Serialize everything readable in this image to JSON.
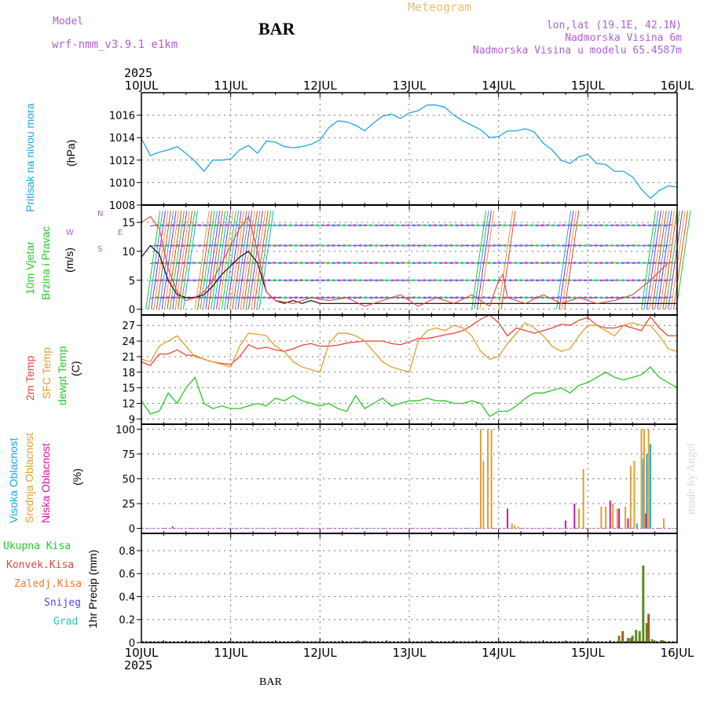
{
  "header": {
    "model_label": "Model",
    "model_name": "wrf-nmm_v3.9.1 e1km",
    "station": "BAR",
    "product": "Meteogram",
    "lonlat": "lon,lat (19.1E, 42.1N)",
    "elevation": "Nadmorska Visina 6m",
    "model_elevation": "Nadmorska Visina u modelu 65.4587m",
    "year_top": "2025",
    "year_bottom": "2025",
    "footer_station": "BAR",
    "credit": "made by Angel"
  },
  "colors": {
    "pressure": "#1ea7e6",
    "temp2m": "#e8453c",
    "sfc_temp": "#e0a030",
    "dewpt": "#27c827",
    "high_cloud": "#1ea7e6",
    "mid_cloud": "#e0a030",
    "low_cloud": "#d6179c",
    "total_precip": "#27c827",
    "conv_precip": "#e8453c",
    "freezing": "#f07b2c",
    "snow": "#4a4ae6",
    "graupel": "#2bc4b6",
    "wind_line": "#000000",
    "gust": "#e8453c"
  },
  "chart_data": {
    "type": "line",
    "x_ticks": [
      "10JUL",
      "11JUL",
      "12JUL",
      "13JUL",
      "14JUL",
      "15JUL",
      "16JUL"
    ],
    "xlim_days": [
      0,
      6
    ],
    "panels": [
      {
        "id": "pressure",
        "ylabel": "(hPa)",
        "series_label": "Pritisak na nivou mora",
        "ylim": [
          1008,
          1018
        ],
        "yticks": [
          1008,
          1010,
          1012,
          1014,
          1016
        ],
        "series": [
          {
            "name": "Pritisak na nivou mora",
            "x": [
              0,
              0.1,
              0.2,
              0.3,
              0.4,
              0.5,
              0.6,
              0.7,
              0.8,
              0.9,
              1.0,
              1.1,
              1.2,
              1.3,
              1.4,
              1.5,
              1.6,
              1.7,
              1.8,
              1.9,
              2.0,
              2.1,
              2.2,
              2.3,
              2.4,
              2.5,
              2.6,
              2.7,
              2.8,
              2.9,
              3.0,
              3.1,
              3.2,
              3.3,
              3.4,
              3.5,
              3.6,
              3.7,
              3.8,
              3.9,
              4.0,
              4.1,
              4.2,
              4.3,
              4.4,
              4.5,
              4.6,
              4.7,
              4.8,
              4.9,
              5.0,
              5.1,
              5.2,
              5.3,
              5.4,
              5.5,
              5.6,
              5.7,
              5.8,
              5.9,
              6.0
            ],
            "values": [
              1013.9,
              1012.4,
              1012.7,
              1012.9,
              1013.2,
              1012.6,
              1011.9,
              1011.0,
              1012.0,
              1012.0,
              1012.1,
              1012.9,
              1013.3,
              1012.6,
              1013.7,
              1013.6,
              1013.2,
              1013.1,
              1013.2,
              1013.4,
              1013.8,
              1014.9,
              1015.5,
              1015.4,
              1015.1,
              1014.6,
              1015.3,
              1015.9,
              1016.1,
              1015.7,
              1016.2,
              1016.4,
              1016.9,
              1016.9,
              1016.7,
              1016.0,
              1015.5,
              1015.1,
              1014.7,
              1014.0,
              1014.1,
              1014.6,
              1014.6,
              1014.8,
              1014.5,
              1013.5,
              1012.9,
              1012.0,
              1011.7,
              1012.3,
              1012.5,
              1011.7,
              1011.6,
              1011.0,
              1011.0,
              1010.5,
              1009.4,
              1008.6,
              1009.3,
              1009.7,
              1009.6
            ]
          }
        ]
      },
      {
        "id": "wind",
        "ylabel": "(m/s)",
        "series_label_1": "10m Vjetar",
        "series_label_2": "Brzina i Pravac",
        "ylim": [
          -1,
          18
        ],
        "yticks": [
          0,
          5,
          10,
          15
        ],
        "direction_labels": [
          "N",
          "S",
          "W",
          "E"
        ],
        "series": [
          {
            "name": "speed",
            "x": [
              0,
              0.1,
              0.2,
              0.3,
              0.4,
              0.5,
              0.6,
              0.7,
              0.8,
              0.9,
              1.0,
              1.1,
              1.2,
              1.3,
              1.4,
              1.5,
              1.6,
              1.7,
              1.8,
              1.9,
              2.0,
              2.5,
              3.0,
              3.5,
              4.0,
              4.5,
              5.0,
              5.5,
              6.0
            ],
            "values": [
              9.0,
              11.0,
              9.5,
              5.0,
              2.5,
              2.0,
              2.0,
              2.5,
              4.0,
              6.0,
              7.5,
              9.0,
              10.0,
              8.0,
              3.0,
              1.5,
              1.0,
              1.5,
              1.0,
              1.5,
              1.0,
              1.0,
              1.0,
              1.0,
              1.0,
              1.0,
              1.0,
              1.0,
              1.0
            ]
          },
          {
            "name": "gust",
            "x": [
              0,
              0.1,
              0.2,
              0.3,
              0.4,
              0.5,
              0.6,
              0.7,
              0.8,
              0.9,
              1.0,
              1.1,
              1.2,
              1.3,
              1.4,
              1.5,
              1.7,
              1.9,
              2.1,
              2.3,
              2.5,
              2.7,
              2.9,
              3.1,
              3.3,
              3.5,
              3.7,
              3.9,
              4.0,
              4.05,
              4.1,
              4.3,
              4.5,
              4.7,
              4.9,
              5.1,
              5.3,
              5.5,
              5.7,
              5.9,
              6.0
            ],
            "values": [
              15.0,
              16.0,
              14.0,
              7.0,
              3.0,
              1.5,
              2.0,
              3.0,
              5.0,
              8.0,
              11.0,
              14.0,
              16.0,
              10.0,
              3.0,
              1.5,
              1.0,
              2.0,
              1.5,
              2.0,
              0.5,
              1.5,
              2.5,
              0.5,
              2.0,
              1.0,
              2.5,
              0.5,
              5.0,
              6.0,
              2.0,
              1.0,
              2.5,
              1.0,
              2.0,
              1.0,
              1.5,
              2.5,
              5.0,
              8.0,
              8.0
            ]
          }
        ]
      },
      {
        "id": "temperature",
        "ylabel": "(C)",
        "ylim": [
          8,
          29
        ],
        "yticks": [
          9,
          12,
          15,
          18,
          21,
          24,
          27
        ],
        "series": [
          {
            "name": "2m Temp",
            "x": [
              0,
              0.1,
              0.2,
              0.3,
              0.4,
              0.5,
              0.6,
              0.7,
              0.8,
              0.9,
              1.0,
              1.1,
              1.2,
              1.3,
              1.4,
              1.5,
              1.6,
              1.7,
              1.8,
              1.9,
              2.0,
              2.1,
              2.2,
              2.3,
              2.4,
              2.5,
              2.6,
              2.7,
              2.8,
              2.9,
              3.0,
              3.1,
              3.2,
              3.3,
              3.4,
              3.5,
              3.6,
              3.7,
              3.8,
              3.9,
              4.0,
              4.1,
              4.2,
              4.3,
              4.4,
              4.5,
              4.6,
              4.7,
              4.8,
              4.9,
              5.0,
              5.1,
              5.2,
              5.3,
              5.4,
              5.5,
              5.6,
              5.7,
              5.8,
              5.9,
              6.0
            ],
            "values": [
              20.0,
              19.3,
              21.5,
              21.5,
              22.3,
              21.3,
              21.2,
              20.5,
              20.0,
              19.7,
              19.5,
              21.0,
              23.3,
              22.5,
              22.8,
              22.3,
              22.0,
              22.5,
              23.2,
              23.5,
              23.0,
              23.0,
              23.2,
              23.6,
              23.8,
              24.0,
              24.0,
              24.0,
              23.5,
              23.3,
              23.8,
              24.5,
              24.5,
              24.8,
              25.2,
              25.5,
              26.0,
              27.0,
              28.2,
              29.0,
              27.5,
              25.0,
              26.5,
              26.0,
              25.5,
              26.0,
              26.5,
              27.2,
              27.0,
              28.0,
              28.5,
              27.0,
              26.5,
              26.5,
              27.0,
              26.5,
              26.0,
              28.7,
              26.5,
              25.0,
              25.0
            ]
          },
          {
            "name": "SFC Temp",
            "x": [
              0,
              0.1,
              0.2,
              0.3,
              0.4,
              0.5,
              0.6,
              0.7,
              0.8,
              0.9,
              1.0,
              1.1,
              1.2,
              1.3,
              1.4,
              1.5,
              1.6,
              1.7,
              1.8,
              1.9,
              2.0,
              2.1,
              2.2,
              2.3,
              2.4,
              2.5,
              2.6,
              2.7,
              2.8,
              2.9,
              3.0,
              3.1,
              3.2,
              3.3,
              3.4,
              3.5,
              3.6,
              3.7,
              3.8,
              3.9,
              4.0,
              4.1,
              4.2,
              4.3,
              4.4,
              4.5,
              4.6,
              4.7,
              4.8,
              4.9,
              5.0,
              5.1,
              5.2,
              5.3,
              5.4,
              5.5,
              5.6,
              5.7,
              5.8,
              5.9,
              6.0
            ],
            "values": [
              20.5,
              20.0,
              23.0,
              24.0,
              25.0,
              23.0,
              21.0,
              20.5,
              20.0,
              19.5,
              19.0,
              23.0,
              25.5,
              25.3,
              25.0,
              23.0,
              22.0,
              20.0,
              19.0,
              18.5,
              18.0,
              23.5,
              25.5,
              25.5,
              25.0,
              24.0,
              22.0,
              20.0,
              19.0,
              18.5,
              18.0,
              24.0,
              26.0,
              26.5,
              26.0,
              27.0,
              26.5,
              25.0,
              22.0,
              20.5,
              21.0,
              23.5,
              25.5,
              27.5,
              26.5,
              25.0,
              23.0,
              22.0,
              22.5,
              25.0,
              27.0,
              27.0,
              26.0,
              25.0,
              27.0,
              27.5,
              27.0,
              27.0,
              25.0,
              22.5,
              22.0
            ]
          },
          {
            "name": "dewpt Temp",
            "x": [
              0,
              0.1,
              0.2,
              0.3,
              0.4,
              0.5,
              0.6,
              0.7,
              0.8,
              0.9,
              1.0,
              1.1,
              1.2,
              1.3,
              1.4,
              1.5,
              1.6,
              1.7,
              1.8,
              1.9,
              2.0,
              2.1,
              2.2,
              2.3,
              2.4,
              2.5,
              2.6,
              2.7,
              2.8,
              2.9,
              3.0,
              3.1,
              3.2,
              3.3,
              3.4,
              3.5,
              3.6,
              3.7,
              3.8,
              3.9,
              4.0,
              4.1,
              4.2,
              4.3,
              4.4,
              4.5,
              4.6,
              4.7,
              4.8,
              4.9,
              5.0,
              5.1,
              5.2,
              5.3,
              5.4,
              5.5,
              5.6,
              5.7,
              5.8,
              5.9,
              6.0
            ],
            "values": [
              12.5,
              10.0,
              10.5,
              14.0,
              12.0,
              15.0,
              17.0,
              12.0,
              11.0,
              11.5,
              11.0,
              11.0,
              11.5,
              12.0,
              11.5,
              13.0,
              12.5,
              13.5,
              12.5,
              12.0,
              11.5,
              12.0,
              11.0,
              10.5,
              13.5,
              11.0,
              12.0,
              13.0,
              11.5,
              12.0,
              12.5,
              12.5,
              13.0,
              12.5,
              12.5,
              12.0,
              12.0,
              12.5,
              12.0,
              9.5,
              10.5,
              10.5,
              11.5,
              13.0,
              14.0,
              14.0,
              14.5,
              15.0,
              14.0,
              15.5,
              16.0,
              17.0,
              18.0,
              17.0,
              16.5,
              17.0,
              17.5,
              19.0,
              17.0,
              16.0,
              15.0
            ]
          }
        ],
        "label_2m": "2m Temp",
        "label_sfc": "SFC Temp",
        "label_dew": "dewpt Temp"
      },
      {
        "id": "cloud",
        "ylabel": "(%)",
        "ylim": [
          -5,
          105
        ],
        "yticks": [
          0,
          25,
          50,
          75,
          100
        ],
        "label_high": "Visoka Oblacnost",
        "label_mid": "Srednja Oblacnost",
        "label_low": "Niska Oblacnost",
        "series": [
          {
            "name": "Visoka Oblacnost",
            "x": [
              5.55,
              5.62,
              5.66,
              5.7
            ],
            "values": [
              5,
              70,
              75,
              85
            ]
          },
          {
            "name": "Srednja Oblacnost",
            "x": [
              3.8,
              3.83,
              3.88,
              3.92,
              4.15,
              4.18,
              4.22,
              4.9,
              4.95,
              5.15,
              5.2,
              5.28,
              5.33,
              5.42,
              5.48,
              5.52,
              5.6,
              5.63,
              5.68,
              5.85
            ],
            "values": [
              100,
              68,
              100,
              100,
              5,
              3,
              2,
              20,
              60,
              22,
              22,
              25,
              20,
              22,
              63,
              68,
              100,
              100,
              100,
              10
            ]
          },
          {
            "name": "Niska Oblacnost",
            "x": [
              0.35,
              4.1,
              4.75,
              4.85,
              5.25,
              5.35,
              5.45,
              5.65
            ],
            "values": [
              2,
              20,
              8,
              25,
              28,
              20,
              10,
              15
            ]
          }
        ]
      },
      {
        "id": "precip",
        "ylabel": "1hr Precip (mm)",
        "ylim": [
          0,
          0.95
        ],
        "yticks": [
          0,
          0.2,
          0.4,
          0.6,
          0.8
        ],
        "labels": [
          "Ukupna Kisa",
          "Konvek.Kisa",
          "Zaledj.Kisa",
          "Snijeg",
          "Grad"
        ],
        "series": [
          {
            "name": "Ukupna Kisa",
            "x": [
              5.35,
              5.45,
              5.5,
              5.54,
              5.58,
              5.62,
              5.66,
              5.72,
              5.84
            ],
            "values": [
              0.06,
              0.04,
              0.06,
              0.11,
              0.1,
              0.67,
              0.17,
              0.03,
              0.02
            ]
          },
          {
            "name": "Konvek.Kisa",
            "x": [
              5.39,
              5.48,
              5.68,
              5.82
            ],
            "values": [
              0.1,
              0.04,
              0.25,
              0.02
            ]
          }
        ]
      }
    ]
  }
}
